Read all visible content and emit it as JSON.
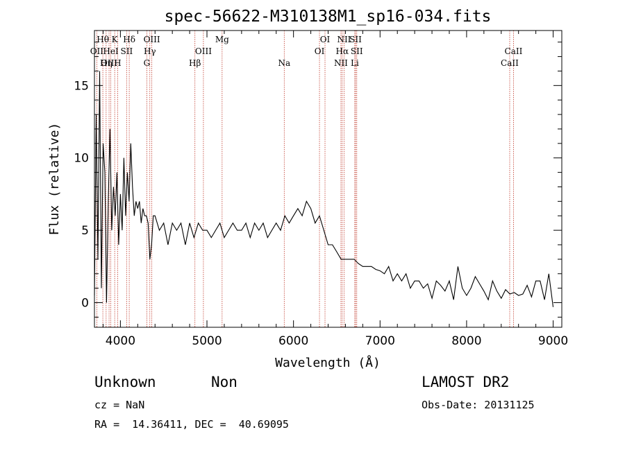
{
  "chart_data": {
    "type": "line",
    "title": "spec-56622-M310138M1_sp16-034.fits",
    "xlabel": "Wavelength (Å)",
    "ylabel": "Flux (relative)",
    "xlim": [
      3700,
      9100
    ],
    "ylim": [
      -1.7,
      18.8
    ],
    "x_ticks": [
      4000,
      5000,
      6000,
      7000,
      8000,
      9000
    ],
    "y_ticks": [
      0,
      5,
      10,
      15
    ],
    "grid": false,
    "line_color": "#000000",
    "marker_line_color": "#c0392b",
    "line_labels": [
      {
        "name": "OII",
        "wavelength": 3727,
        "row": 2
      },
      {
        "name": "Hθ",
        "wavelength": 3797,
        "row": 1
      },
      {
        "name": "OIII",
        "wavelength": 3869,
        "row": 3
      },
      {
        "name": "HeI",
        "wavelength": 3889,
        "row": 2
      },
      {
        "name": "Hη",
        "wavelength": 3835,
        "row": 3
      },
      {
        "name": "K",
        "wavelength": 3934,
        "row": 1
      },
      {
        "name": "SII",
        "wavelength": 4072,
        "row": 2
      },
      {
        "name": "H",
        "wavelength": 3968,
        "row": 3
      },
      {
        "name": "Hδ",
        "wavelength": 4102,
        "row": 1
      },
      {
        "name": "OIII",
        "wavelength": 4363,
        "row": 1
      },
      {
        "name": "Hγ",
        "wavelength": 4340,
        "row": 2
      },
      {
        "name": "G",
        "wavelength": 4305,
        "row": 3
      },
      {
        "name": "Mg",
        "wavelength": 5175,
        "row": 1
      },
      {
        "name": "OIII",
        "wavelength": 4959,
        "row": 2
      },
      {
        "name": "Hβ",
        "wavelength": 4861,
        "row": 3
      },
      {
        "name": "Na",
        "wavelength": 5893,
        "row": 3
      },
      {
        "name": "OI",
        "wavelength": 6364,
        "row": 1
      },
      {
        "name": "OI",
        "wavelength": 6300,
        "row": 2
      },
      {
        "name": "NII",
        "wavelength": 6584,
        "row": 1
      },
      {
        "name": "SII",
        "wavelength": 6717,
        "row": 1
      },
      {
        "name": "Hα",
        "wavelength": 6563,
        "row": 2
      },
      {
        "name": "SII",
        "wavelength": 6731,
        "row": 2
      },
      {
        "name": "NII",
        "wavelength": 6548,
        "row": 3
      },
      {
        "name": "Li",
        "wavelength": 6708,
        "row": 3
      },
      {
        "name": "CaII",
        "wavelength": 8542,
        "row": 2
      },
      {
        "name": "CaII",
        "wavelength": 8498,
        "row": 3
      }
    ],
    "series": [
      {
        "x": [
          3700,
          3720,
          3740,
          3760,
          3780,
          3800,
          3820,
          3840,
          3860,
          3880,
          3900,
          3920,
          3940,
          3960,
          3980,
          4000,
          4020,
          4040,
          4060,
          4080,
          4100,
          4120,
          4140,
          4160,
          4180,
          4200,
          4220,
          4240,
          4260,
          4280,
          4300,
          4320,
          4340,
          4360,
          4380,
          4400,
          4450,
          4500,
          4550,
          4600,
          4650,
          4700,
          4750,
          4800,
          4850,
          4900,
          4950,
          5000,
          5050,
          5100,
          5150,
          5200,
          5250,
          5300,
          5350,
          5400,
          5450,
          5500,
          5550,
          5600,
          5650,
          5700,
          5750,
          5800,
          5850,
          5900,
          5950,
          6000,
          6050,
          6100,
          6150,
          6200,
          6250,
          6300,
          6350,
          6400,
          6450,
          6500,
          6550,
          6600,
          6650,
          6700,
          6750,
          6800,
          6850,
          6900,
          6950,
          7000,
          7050,
          7100,
          7150,
          7200,
          7250,
          7300,
          7350,
          7400,
          7450,
          7500,
          7550,
          7600,
          7650,
          7700,
          7750,
          7800,
          7850,
          7900,
          7950,
          8000,
          8050,
          8100,
          8150,
          8200,
          8250,
          8300,
          8350,
          8400,
          8450,
          8500,
          8550,
          8600,
          8650,
          8700,
          8750,
          8800,
          8850,
          8900,
          8950,
          9000
        ],
        "y": [
          0.5,
          13,
          3,
          16,
          1,
          11,
          9,
          0,
          7,
          12,
          5,
          8,
          6,
          9,
          4,
          7.5,
          5,
          10,
          6,
          9,
          7,
          11,
          8,
          6,
          7,
          6.5,
          7,
          5.5,
          6.5,
          6,
          6,
          5.5,
          3,
          4,
          6,
          6,
          5,
          5.5,
          4,
          5.5,
          5,
          5.5,
          4,
          5.5,
          4.5,
          5.5,
          5,
          5,
          4.5,
          5,
          5.5,
          4.5,
          5,
          5.5,
          5,
          5,
          5.5,
          4.5,
          5.5,
          5,
          5.5,
          4.5,
          5,
          5.5,
          5,
          6,
          5.5,
          6,
          6.5,
          6,
          7,
          6.5,
          5.5,
          6,
          5,
          4,
          4,
          3.5,
          3,
          3,
          3,
          3,
          2.7,
          2.5,
          2.5,
          2.5,
          2.3,
          2.2,
          2,
          2.5,
          1.5,
          2,
          1.5,
          2,
          1,
          1.5,
          1.5,
          1,
          1.3,
          0.3,
          1.5,
          1.2,
          0.8,
          1.5,
          0.2,
          2.5,
          1,
          0.5,
          1,
          1.8,
          1.3,
          0.8,
          0.2,
          1.5,
          0.8,
          0.3,
          0.9,
          0.6,
          0.7,
          0.5,
          0.6,
          1.2,
          0.4,
          1.5,
          1.5,
          0.2,
          2,
          -0.3
        ]
      }
    ]
  },
  "info": {
    "class": "Unknown",
    "subclass": "Non",
    "cz": "cz = NaN",
    "radec": "RA =  14.36411, DEC =  40.69095",
    "survey": "LAMOST DR2",
    "obs_date": "Obs-Date: 20131125"
  }
}
